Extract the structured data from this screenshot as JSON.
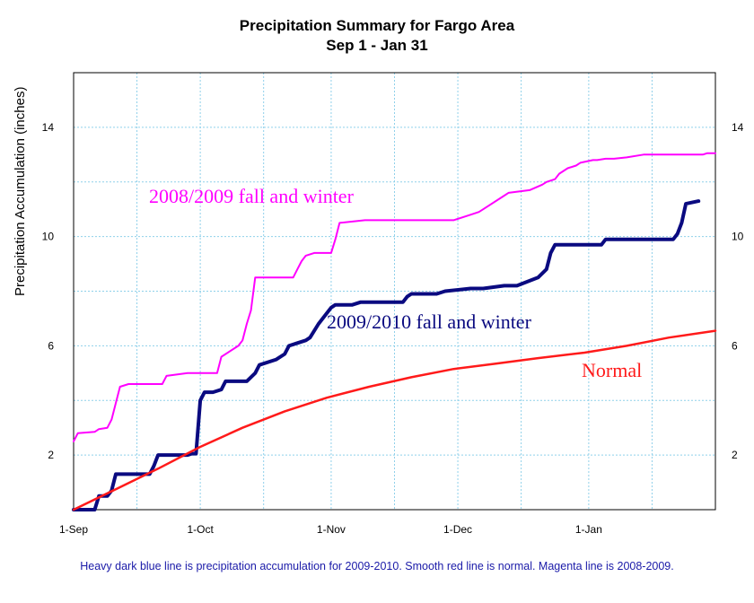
{
  "chart_data": {
    "type": "line",
    "title": "Precipitation Summary for Fargo Area",
    "subtitle": "Sep 1 - Jan 31",
    "xlabel": "",
    "ylabel": "Precipitation Accumulation (inches)",
    "x_ticks": [
      "1-Sep",
      "1-Oct",
      "1-Nov",
      "1-Dec",
      "1-Jan"
    ],
    "y_ticks": [
      "2",
      "6",
      "10",
      "14"
    ],
    "xlim": [
      "2009-09-01",
      "2010-01-31"
    ],
    "ylim": [
      0,
      16
    ],
    "grid": true,
    "series": [
      {
        "name": "2008/2009 fall and winter",
        "color": "#ff00ff",
        "x": [
          "2009-09-01",
          "2009-09-02",
          "2009-09-06",
          "2009-09-07",
          "2009-09-09",
          "2009-09-10",
          "2009-09-11",
          "2009-09-12",
          "2009-09-14",
          "2009-09-22",
          "2009-09-23",
          "2009-09-28",
          "2009-10-05",
          "2009-10-06",
          "2009-10-10",
          "2009-10-11",
          "2009-10-12",
          "2009-10-13",
          "2009-10-14",
          "2009-10-23",
          "2009-10-24",
          "2009-10-25",
          "2009-10-26",
          "2009-10-28",
          "2009-11-01",
          "2009-11-02",
          "2009-11-03",
          "2009-11-09",
          "2009-11-30",
          "2009-12-04",
          "2009-12-06",
          "2009-12-07",
          "2009-12-12",
          "2009-12-13",
          "2009-12-18",
          "2009-12-21",
          "2009-12-22",
          "2009-12-24",
          "2009-12-25",
          "2009-12-27",
          "2009-12-29",
          "2009-12-30",
          "2010-01-02",
          "2010-01-03",
          "2010-01-05",
          "2010-01-07",
          "2010-01-10",
          "2010-01-14",
          "2010-01-24",
          "2010-01-28",
          "2010-01-29",
          "2010-01-31"
        ],
        "y": [
          2.5,
          2.8,
          2.85,
          2.95,
          3.0,
          3.3,
          3.9,
          4.5,
          4.6,
          4.6,
          4.9,
          5.0,
          5.0,
          5.6,
          6.0,
          6.2,
          6.8,
          7.3,
          8.5,
          8.5,
          8.8,
          9.1,
          9.3,
          9.4,
          9.4,
          9.9,
          10.5,
          10.6,
          10.6,
          10.8,
          10.9,
          11.0,
          11.5,
          11.6,
          11.7,
          11.9,
          12.0,
          12.1,
          12.3,
          12.5,
          12.6,
          12.7,
          12.8,
          12.8,
          12.85,
          12.85,
          12.9,
          13.0,
          13.0,
          13.0,
          13.05,
          13.05
        ]
      },
      {
        "name": "2009/2010 fall and winter",
        "color": "#0a0a80",
        "x": [
          "2009-09-01",
          "2009-09-06",
          "2009-09-07",
          "2009-09-08",
          "2009-09-09",
          "2009-09-10",
          "2009-09-11",
          "2009-09-19",
          "2009-09-20",
          "2009-09-21",
          "2009-09-28",
          "2009-09-29",
          "2009-09-30",
          "2009-10-01",
          "2009-10-02",
          "2009-10-04",
          "2009-10-06",
          "2009-10-07",
          "2009-10-12",
          "2009-10-14",
          "2009-10-15",
          "2009-10-19",
          "2009-10-21",
          "2009-10-22",
          "2009-10-24",
          "2009-10-26",
          "2009-10-27",
          "2009-10-29",
          "2009-11-01",
          "2009-11-02",
          "2009-11-06",
          "2009-11-08",
          "2009-11-18",
          "2009-11-19",
          "2009-11-20",
          "2009-11-26",
          "2009-11-28",
          "2009-12-04",
          "2009-12-07",
          "2009-12-12",
          "2009-12-15",
          "2009-12-20",
          "2009-12-22",
          "2009-12-23",
          "2009-12-24",
          "2009-12-25",
          "2010-01-04",
          "2010-01-05",
          "2010-01-21",
          "2010-01-22",
          "2010-01-23",
          "2010-01-24",
          "2010-01-27"
        ],
        "y": [
          0,
          0,
          0.5,
          0.5,
          0.5,
          0.7,
          1.3,
          1.3,
          1.6,
          2.0,
          2.0,
          2.05,
          2.05,
          4.0,
          4.3,
          4.3,
          4.4,
          4.7,
          4.7,
          5.0,
          5.3,
          5.5,
          5.7,
          6.0,
          6.1,
          6.2,
          6.3,
          6.8,
          7.4,
          7.5,
          7.5,
          7.6,
          7.6,
          7.8,
          7.9,
          7.9,
          8.0,
          8.1,
          8.1,
          8.2,
          8.2,
          8.5,
          8.8,
          9.4,
          9.7,
          9.7,
          9.7,
          9.9,
          9.9,
          10.1,
          10.5,
          11.2,
          11.3
        ]
      },
      {
        "name": "Normal",
        "color": "#ff1a1a",
        "x": [
          "2009-09-01",
          "2009-09-11",
          "2009-09-21",
          "2009-10-01",
          "2009-10-11",
          "2009-10-21",
          "2009-10-31",
          "2009-11-10",
          "2009-11-20",
          "2009-11-30",
          "2009-12-10",
          "2009-12-20",
          "2009-12-31",
          "2010-01-10",
          "2010-01-20",
          "2010-01-31"
        ],
        "y": [
          0.0,
          0.75,
          1.5,
          2.3,
          3.0,
          3.6,
          4.1,
          4.5,
          4.85,
          5.15,
          5.35,
          5.55,
          5.75,
          6.0,
          6.3,
          6.55
        ]
      }
    ]
  },
  "footnote": "Heavy dark blue line is precipitation accumulation for 2009-2010. Smooth red line is normal. Magenta line is 2008-2009."
}
